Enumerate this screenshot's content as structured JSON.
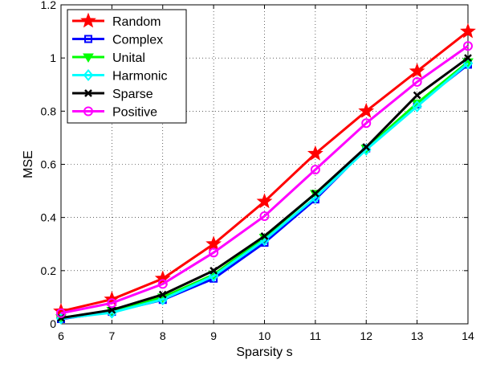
{
  "chart_data": {
    "type": "line",
    "title": "",
    "xlabel": "Sparsity s",
    "ylabel": "MSE",
    "x": [
      6,
      7,
      8,
      9,
      10,
      11,
      12,
      13,
      14
    ],
    "xlim": [
      6,
      14
    ],
    "ylim": [
      0,
      1.2
    ],
    "xticks": [
      "6",
      "7",
      "8",
      "9",
      "10",
      "11",
      "12",
      "13",
      "14"
    ],
    "yticks": [
      "0",
      "0.2",
      "0.4",
      "0.6",
      "0.8",
      "1",
      "1.2"
    ],
    "grid": true,
    "legend_position": "top-left",
    "series": [
      {
        "name": "Random",
        "color": "#ff0000",
        "marker": "star",
        "values": [
          0.047,
          0.092,
          0.17,
          0.3,
          0.46,
          0.64,
          0.8,
          0.95,
          1.1
        ]
      },
      {
        "name": "Complex",
        "color": "#0000ff",
        "marker": "square",
        "values": [
          0.018,
          0.045,
          0.09,
          0.17,
          0.305,
          0.468,
          0.66,
          0.825,
          0.975
        ]
      },
      {
        "name": "Unital",
        "color": "#00ff00",
        "marker": "triangle",
        "values": [
          0.022,
          0.05,
          0.1,
          0.185,
          0.325,
          0.49,
          0.66,
          0.83,
          0.985
        ]
      },
      {
        "name": "Harmonic",
        "color": "#00ffff",
        "marker": "diamond",
        "values": [
          0.02,
          0.042,
          0.092,
          0.18,
          0.315,
          0.475,
          0.655,
          0.818,
          0.98
        ]
      },
      {
        "name": "Sparse",
        "color": "#000000",
        "marker": "x",
        "values": [
          0.022,
          0.052,
          0.11,
          0.2,
          0.33,
          0.49,
          0.665,
          0.86,
          1.0
        ]
      },
      {
        "name": "Positive",
        "color": "#ff00ff",
        "marker": "circle",
        "values": [
          0.04,
          0.078,
          0.15,
          0.268,
          0.405,
          0.58,
          0.755,
          0.91,
          1.045
        ]
      }
    ]
  }
}
